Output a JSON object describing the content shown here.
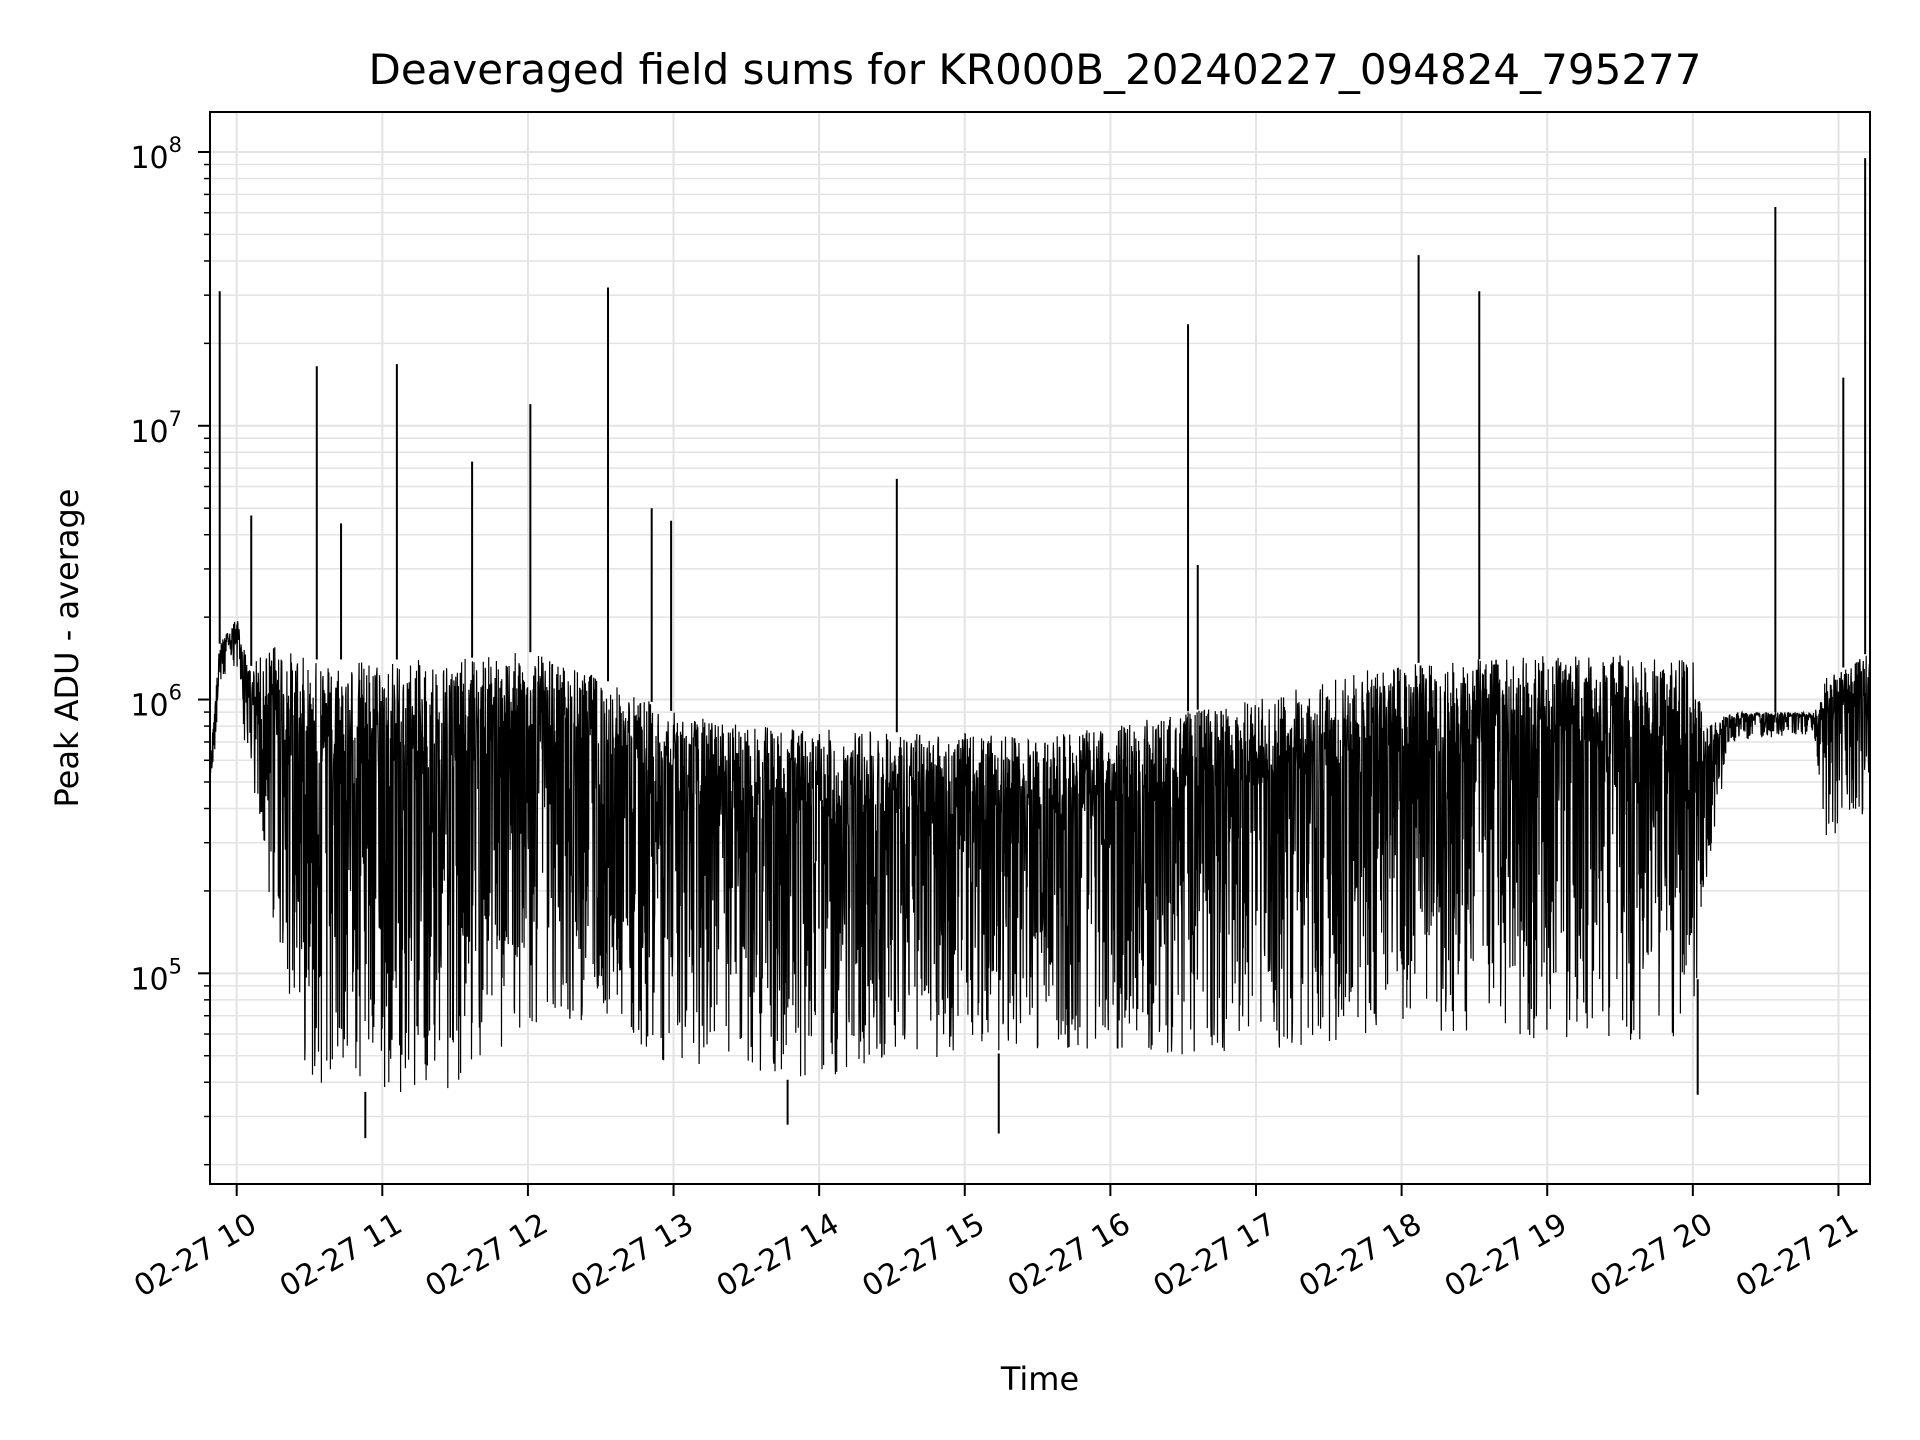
{
  "chart_data": {
    "type": "line",
    "title": "Deaveraged field sums for KR000B_20240227_094824_795277",
    "xlabel": "Time",
    "ylabel": "Peak ADU - average",
    "y_scale": "log",
    "ylim": [
      17000,
      140000000
    ],
    "xlim": [
      "2024-02-27 09:49",
      "2024-02-27 21:13"
    ],
    "grid": true,
    "line_color": "#000000",
    "grid_color": "#e3e3e3",
    "x_ticks": [
      {
        "value": "2024-02-27 10:00",
        "label": "02-27 10"
      },
      {
        "value": "2024-02-27 11:00",
        "label": "02-27 11"
      },
      {
        "value": "2024-02-27 12:00",
        "label": "02-27 12"
      },
      {
        "value": "2024-02-27 13:00",
        "label": "02-27 13"
      },
      {
        "value": "2024-02-27 14:00",
        "label": "02-27 14"
      },
      {
        "value": "2024-02-27 15:00",
        "label": "02-27 15"
      },
      {
        "value": "2024-02-27 16:00",
        "label": "02-27 16"
      },
      {
        "value": "2024-02-27 17:00",
        "label": "02-27 17"
      },
      {
        "value": "2024-02-27 18:00",
        "label": "02-27 18"
      },
      {
        "value": "2024-02-27 19:00",
        "label": "02-27 19"
      },
      {
        "value": "2024-02-27 20:00",
        "label": "02-27 20"
      },
      {
        "value": "2024-02-27 21:00",
        "label": "02-27 21"
      }
    ],
    "y_ticks": [
      {
        "value": 100000,
        "base": "10",
        "exp": "5"
      },
      {
        "value": 1000000,
        "base": "10",
        "exp": "6"
      },
      {
        "value": 10000000,
        "base": "10",
        "exp": "7"
      },
      {
        "value": 100000000,
        "base": "10",
        "exp": "8"
      }
    ],
    "envelope": [
      {
        "t": "2024-02-27 09:49",
        "upper": 600000,
        "lower": 380000
      },
      {
        "t": "2024-02-27 09:53",
        "upper": 1600000,
        "lower": 1100000
      },
      {
        "t": "2024-02-27 10:00",
        "upper": 2000000,
        "lower": 1300000
      },
      {
        "t": "2024-02-27 10:05",
        "upper": 1300000,
        "lower": 500000
      },
      {
        "t": "2024-02-27 10:15",
        "upper": 1600000,
        "lower": 150000
      },
      {
        "t": "2024-02-27 10:30",
        "upper": 1400000,
        "lower": 40000
      },
      {
        "t": "2024-02-27 11:00",
        "upper": 1400000,
        "lower": 36000
      },
      {
        "t": "2024-02-27 11:30",
        "upper": 1400000,
        "lower": 38000
      },
      {
        "t": "2024-02-27 12:00",
        "upper": 1500000,
        "lower": 60000
      },
      {
        "t": "2024-02-27 12:30",
        "upper": 1200000,
        "lower": 70000
      },
      {
        "t": "2024-02-27 13:00",
        "upper": 900000,
        "lower": 45000
      },
      {
        "t": "2024-02-27 13:30",
        "upper": 800000,
        "lower": 42000
      },
      {
        "t": "2024-02-27 14:00",
        "upper": 780000,
        "lower": 40000
      },
      {
        "t": "2024-02-27 14:30",
        "upper": 760000,
        "lower": 48000
      },
      {
        "t": "2024-02-27 15:00",
        "upper": 750000,
        "lower": 50000
      },
      {
        "t": "2024-02-27 15:30",
        "upper": 720000,
        "lower": 52000
      },
      {
        "t": "2024-02-27 16:00",
        "upper": 800000,
        "lower": 50000
      },
      {
        "t": "2024-02-27 16:30",
        "upper": 900000,
        "lower": 50000
      },
      {
        "t": "2024-02-27 17:00",
        "upper": 1000000,
        "lower": 52000
      },
      {
        "t": "2024-02-27 17:30",
        "upper": 1200000,
        "lower": 55000
      },
      {
        "t": "2024-02-27 18:00",
        "upper": 1350000,
        "lower": 58000
      },
      {
        "t": "2024-02-27 18:30",
        "upper": 1400000,
        "lower": 58000
      },
      {
        "t": "2024-02-27 19:00",
        "upper": 1450000,
        "lower": 58000
      },
      {
        "t": "2024-02-27 19:30",
        "upper": 1450000,
        "lower": 56000
      },
      {
        "t": "2024-02-27 20:00",
        "upper": 1400000,
        "lower": 58000
      },
      {
        "t": "2024-02-27 20:05",
        "upper": 800000,
        "lower": 200000
      },
      {
        "t": "2024-02-27 20:15",
        "upper": 900000,
        "lower": 700000
      },
      {
        "t": "2024-02-27 20:50",
        "upper": 900000,
        "lower": 750000
      },
      {
        "t": "2024-02-27 20:55",
        "upper": 1200000,
        "lower": 300000
      },
      {
        "t": "2024-02-27 21:13",
        "upper": 1500000,
        "lower": 400000
      }
    ],
    "spikes": [
      {
        "t": "2024-02-27 09:53",
        "value": 31000000
      },
      {
        "t": "2024-02-27 10:06",
        "value": 4700000
      },
      {
        "t": "2024-02-27 10:33",
        "value": 16500000
      },
      {
        "t": "2024-02-27 10:43",
        "value": 4400000
      },
      {
        "t": "2024-02-27 11:06",
        "value": 16800000
      },
      {
        "t": "2024-02-27 11:37",
        "value": 7400000
      },
      {
        "t": "2024-02-27 12:01",
        "value": 12000000
      },
      {
        "t": "2024-02-27 12:33",
        "value": 32000000
      },
      {
        "t": "2024-02-27 12:51",
        "value": 5000000
      },
      {
        "t": "2024-02-27 12:59",
        "value": 4500000
      },
      {
        "t": "2024-02-27 14:32",
        "value": 6400000
      },
      {
        "t": "2024-02-27 16:32",
        "value": 23500000
      },
      {
        "t": "2024-02-27 16:36",
        "value": 3100000
      },
      {
        "t": "2024-02-27 18:07",
        "value": 42000000
      },
      {
        "t": "2024-02-27 18:32",
        "value": 31000000
      },
      {
        "t": "2024-02-27 20:34",
        "value": 63000000
      },
      {
        "t": "2024-02-27 21:02",
        "value": 15000000
      },
      {
        "t": "2024-02-27 21:11",
        "value": 95000000
      }
    ],
    "dips": [
      {
        "t": "2024-02-27 10:53",
        "value": 25000
      },
      {
        "t": "2024-02-27 13:47",
        "value": 28000
      },
      {
        "t": "2024-02-27 15:14",
        "value": 26000
      },
      {
        "t": "2024-02-27 20:02",
        "value": 36000
      }
    ]
  }
}
